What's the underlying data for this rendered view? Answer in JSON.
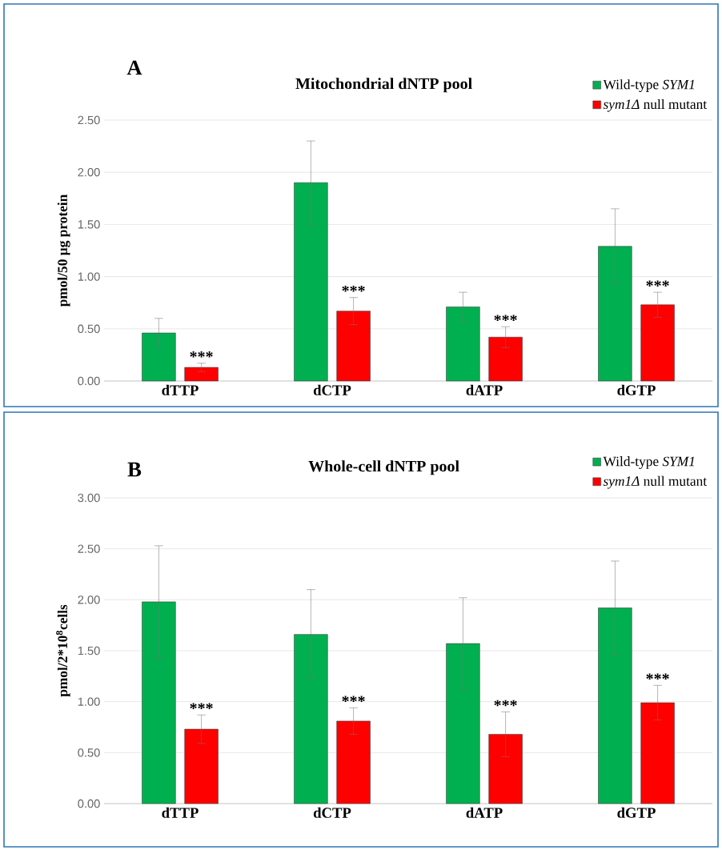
{
  "chart_data": [
    {
      "type": "bar",
      "title": "Mitochondrial dNTP pool",
      "ylabel": "pmol/50 µg protein",
      "categories": [
        "dTTP",
        "dCTP",
        "dATP",
        "dGTP"
      ],
      "series": [
        {
          "name": "Wild-type *SYM1*",
          "color": "#00b050",
          "values": [
            0.46,
            1.9,
            0.71,
            1.29
          ],
          "errors": [
            0.14,
            0.4,
            0.14,
            0.36
          ]
        },
        {
          "name": "*sym1Δ* null mutant",
          "color": "#ff0000",
          "values": [
            0.13,
            0.67,
            0.42,
            0.73
          ],
          "errors": [
            0.04,
            0.13,
            0.1,
            0.12
          ]
        }
      ],
      "ylim": [
        0,
        2.5
      ],
      "yticks": [
        {
          "value": 0,
          "label": "0.00"
        },
        {
          "value": 0.5,
          "label": "0.50"
        },
        {
          "value": 1,
          "label": "1.00"
        },
        {
          "value": 1.5,
          "label": "1.50"
        },
        {
          "value": 2,
          "label": "2.00"
        },
        {
          "value": 2.5,
          "label": "2.50"
        }
      ],
      "grid": "y",
      "legend": "top right",
      "annotations": [
        "A",
        "***",
        "***",
        "***",
        "***"
      ]
    },
    {
      "type": "bar",
      "title": "Whole-cell dNTP pool",
      "ylabel": "pmol/2*10$^{8}$cells",
      "categories": [
        "dTTP",
        "dCTP",
        "dATP",
        "dGTP"
      ],
      "series": [
        {
          "name": "Wild-type *SYM1*",
          "color": "#00b050",
          "values": [
            1.98,
            1.66,
            1.57,
            1.92
          ],
          "errors": [
            0.55,
            0.44,
            0.45,
            0.46
          ]
        },
        {
          "name": "*sym1Δ* null mutant",
          "color": "#ff0000",
          "values": [
            0.73,
            0.81,
            0.68,
            0.99
          ],
          "errors": [
            0.14,
            0.13,
            0.22,
            0.17
          ]
        }
      ],
      "ylim": [
        0,
        3
      ],
      "yticks": [
        {
          "value": 0,
          "label": "0.00"
        },
        {
          "value": 0.5,
          "label": "0.50"
        },
        {
          "value": 1,
          "label": "1.00"
        },
        {
          "value": 1.5,
          "label": "1.50"
        },
        {
          "value": 2,
          "label": "2.00"
        },
        {
          "value": 2.5,
          "label": "2.50"
        },
        {
          "value": 3,
          "label": "3.00"
        }
      ],
      "grid": "y",
      "legend": "top right",
      "annotations": [
        "B",
        "***",
        "***",
        "***",
        "***"
      ]
    }
  ]
}
